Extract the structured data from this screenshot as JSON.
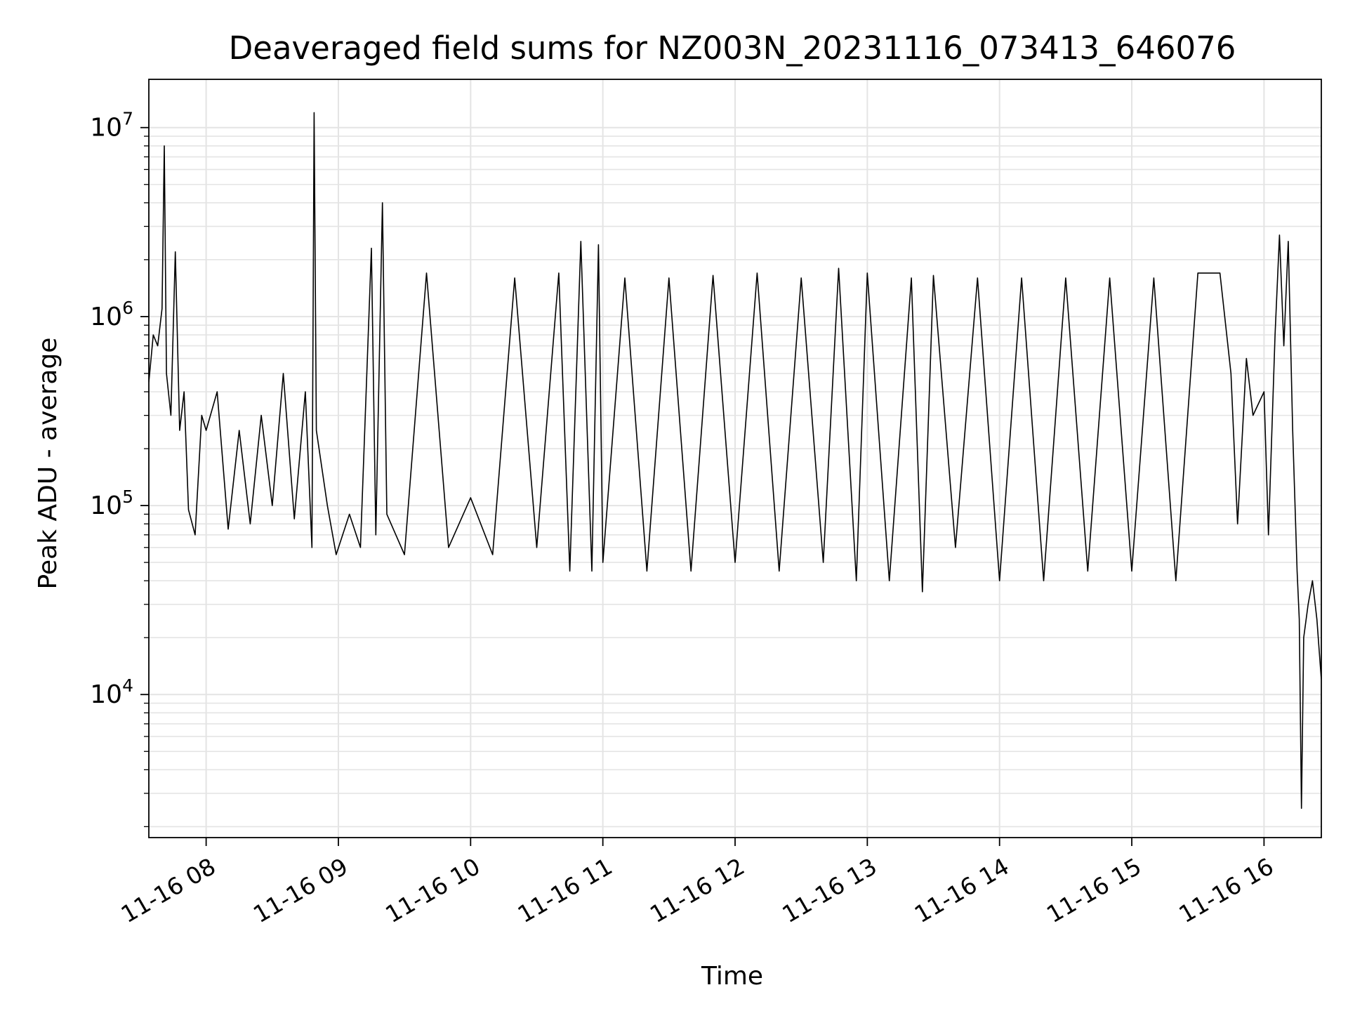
{
  "chart_data": {
    "type": "line",
    "title": "Deaveraged field sums for NZ003N_20231116_073413_646076",
    "xlabel": "Time",
    "ylabel": "Peak ADU - average",
    "y_scale": "log",
    "ylim": [
      1750,
      18000000
    ],
    "xlim": [
      "2023-11-16 07:34",
      "2023-11-16 16:26"
    ],
    "grid": true,
    "line_color": "#000000",
    "x_ticks": [
      {
        "t": "2023-11-16 08:00",
        "label": "11-16 08"
      },
      {
        "t": "2023-11-16 09:00",
        "label": "11-16 09"
      },
      {
        "t": "2023-11-16 10:00",
        "label": "11-16 10"
      },
      {
        "t": "2023-11-16 11:00",
        "label": "11-16 11"
      },
      {
        "t": "2023-11-16 12:00",
        "label": "11-16 12"
      },
      {
        "t": "2023-11-16 13:00",
        "label": "11-16 13"
      },
      {
        "t": "2023-11-16 14:00",
        "label": "11-16 14"
      },
      {
        "t": "2023-11-16 15:00",
        "label": "11-16 15"
      },
      {
        "t": "2023-11-16 16:00",
        "label": "11-16 16"
      }
    ],
    "y_ticks": [
      {
        "value": 10000,
        "base": "10",
        "exp": "4"
      },
      {
        "value": 100000,
        "base": "10",
        "exp": "5"
      },
      {
        "value": 1000000,
        "base": "10",
        "exp": "6"
      },
      {
        "value": 10000000,
        "base": "10",
        "exp": "7"
      }
    ],
    "series": [
      {
        "points": [
          [
            "2023-11-16 07:34",
            450000
          ],
          [
            "2023-11-16 07:36",
            800000
          ],
          [
            "2023-11-16 07:38",
            700000
          ],
          [
            "2023-11-16 07:40",
            1100000
          ],
          [
            "2023-11-16 07:41",
            8000000
          ],
          [
            "2023-11-16 07:42",
            500000
          ],
          [
            "2023-11-16 07:44",
            300000
          ],
          [
            "2023-11-16 07:46",
            2200000
          ],
          [
            "2023-11-16 07:48",
            250000
          ],
          [
            "2023-11-16 07:50",
            400000
          ],
          [
            "2023-11-16 07:52",
            95000
          ],
          [
            "2023-11-16 07:55",
            70000
          ],
          [
            "2023-11-16 07:58",
            300000
          ],
          [
            "2023-11-16 08:00",
            250000
          ],
          [
            "2023-11-16 08:05",
            400000
          ],
          [
            "2023-11-16 08:10",
            75000
          ],
          [
            "2023-11-16 08:15",
            250000
          ],
          [
            "2023-11-16 08:20",
            80000
          ],
          [
            "2023-11-16 08:25",
            300000
          ],
          [
            "2023-11-16 08:30",
            100000
          ],
          [
            "2023-11-16 08:35",
            500000
          ],
          [
            "2023-11-16 08:40",
            85000
          ],
          [
            "2023-11-16 08:45",
            400000
          ],
          [
            "2023-11-16 08:48",
            60000
          ],
          [
            "2023-11-16 08:49",
            12000000
          ],
          [
            "2023-11-16 08:50",
            250000
          ],
          [
            "2023-11-16 08:55",
            100000
          ],
          [
            "2023-11-16 08:59",
            55000
          ],
          [
            "2023-11-16 09:05",
            90000
          ],
          [
            "2023-11-16 09:10",
            60000
          ],
          [
            "2023-11-16 09:15",
            2300000
          ],
          [
            "2023-11-16 09:17",
            70000
          ],
          [
            "2023-11-16 09:20",
            4000000
          ],
          [
            "2023-11-16 09:22",
            90000
          ],
          [
            "2023-11-16 09:30",
            55000
          ],
          [
            "2023-11-16 09:40",
            1700000
          ],
          [
            "2023-11-16 09:50",
            60000
          ],
          [
            "2023-11-16 10:00",
            110000
          ],
          [
            "2023-11-16 10:10",
            55000
          ],
          [
            "2023-11-16 10:20",
            1600000
          ],
          [
            "2023-11-16 10:30",
            60000
          ],
          [
            "2023-11-16 10:40",
            1700000
          ],
          [
            "2023-11-16 10:45",
            45000
          ],
          [
            "2023-11-16 10:50",
            2500000
          ],
          [
            "2023-11-16 10:55",
            45000
          ],
          [
            "2023-11-16 10:58",
            2400000
          ],
          [
            "2023-11-16 11:00",
            50000
          ],
          [
            "2023-11-16 11:10",
            1600000
          ],
          [
            "2023-11-16 11:20",
            45000
          ],
          [
            "2023-11-16 11:30",
            1600000
          ],
          [
            "2023-11-16 11:40",
            45000
          ],
          [
            "2023-11-16 11:50",
            1650000
          ],
          [
            "2023-11-16 12:00",
            50000
          ],
          [
            "2023-11-16 12:10",
            1700000
          ],
          [
            "2023-11-16 12:20",
            45000
          ],
          [
            "2023-11-16 12:30",
            1600000
          ],
          [
            "2023-11-16 12:40",
            50000
          ],
          [
            "2023-11-16 12:47",
            1800000
          ],
          [
            "2023-11-16 12:55",
            40000
          ],
          [
            "2023-11-16 13:00",
            1700000
          ],
          [
            "2023-11-16 13:10",
            40000
          ],
          [
            "2023-11-16 13:20",
            1600000
          ],
          [
            "2023-11-16 13:25",
            35000
          ],
          [
            "2023-11-16 13:30",
            1650000
          ],
          [
            "2023-11-16 13:40",
            60000
          ],
          [
            "2023-11-16 13:50",
            1600000
          ],
          [
            "2023-11-16 14:00",
            40000
          ],
          [
            "2023-11-16 14:10",
            1600000
          ],
          [
            "2023-11-16 14:20",
            40000
          ],
          [
            "2023-11-16 14:30",
            1600000
          ],
          [
            "2023-11-16 14:40",
            45000
          ],
          [
            "2023-11-16 14:50",
            1600000
          ],
          [
            "2023-11-16 15:00",
            45000
          ],
          [
            "2023-11-16 15:10",
            1600000
          ],
          [
            "2023-11-16 15:20",
            40000
          ],
          [
            "2023-11-16 15:30",
            1700000
          ],
          [
            "2023-11-16 15:40",
            1700000
          ],
          [
            "2023-11-16 15:45",
            500000
          ],
          [
            "2023-11-16 15:48",
            80000
          ],
          [
            "2023-11-16 15:52",
            600000
          ],
          [
            "2023-11-16 15:55",
            300000
          ],
          [
            "2023-11-16 16:00",
            400000
          ],
          [
            "2023-11-16 16:02",
            70000
          ],
          [
            "2023-11-16 16:05",
            800000
          ],
          [
            "2023-11-16 16:07",
            2700000
          ],
          [
            "2023-11-16 16:09",
            700000
          ],
          [
            "2023-11-16 16:11",
            2500000
          ],
          [
            "2023-11-16 16:13",
            250000
          ],
          [
            "2023-11-16 16:15",
            45000
          ],
          [
            "2023-11-16 16:16",
            25000
          ],
          [
            "2023-11-16 16:17",
            2500
          ],
          [
            "2023-11-16 16:18",
            20000
          ],
          [
            "2023-11-16 16:20",
            30000
          ],
          [
            "2023-11-16 16:22",
            40000
          ],
          [
            "2023-11-16 16:24",
            25000
          ],
          [
            "2023-11-16 16:26",
            12000
          ]
        ]
      }
    ]
  }
}
